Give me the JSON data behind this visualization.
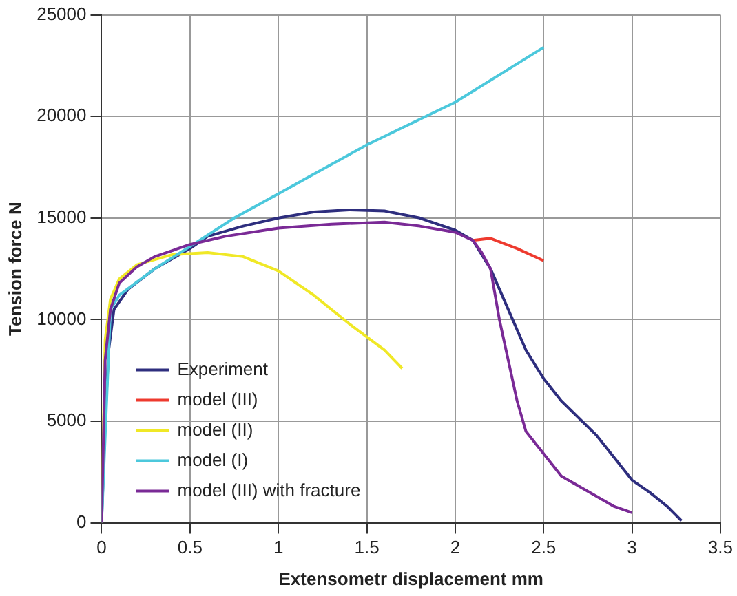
{
  "chart_data": {
    "type": "line",
    "xlabel": "Extensometr displacement mm",
    "ylabel": "Tension force N",
    "xlim": [
      0,
      3.5
    ],
    "xticks": [
      0,
      0.5,
      1,
      1.5,
      2,
      2.5,
      3,
      3.5
    ],
    "ylim": [
      0,
      25000
    ],
    "yticks": [
      0,
      5000,
      10000,
      15000,
      20000,
      25000
    ],
    "grid": true,
    "legend": "bottom left",
    "marker": "none",
    "line_style": "solid",
    "series": [
      {
        "name": "Experiment",
        "color": "#2e2e7e",
        "x": [
          0,
          0.02,
          0.04,
          0.07,
          0.15,
          0.3,
          0.5,
          0.6,
          0.8,
          1.0,
          1.2,
          1.4,
          1.6,
          1.8,
          2.0,
          2.1,
          2.2,
          2.3,
          2.4,
          2.5,
          2.6,
          2.8,
          3.0,
          3.1,
          3.2,
          3.28
        ],
        "values": [
          0,
          5000,
          8500,
          10500,
          11500,
          12500,
          13500,
          14100,
          14600,
          15000,
          15300,
          15400,
          15350,
          15000,
          14400,
          13900,
          12500,
          10500,
          8500,
          7100,
          6000,
          4300,
          2100,
          1500,
          800,
          100
        ]
      },
      {
        "name": "model (III)",
        "color": "#ee3a2e",
        "x": [
          2.1,
          2.2,
          2.35,
          2.5
        ],
        "values": [
          13900,
          14000,
          13500,
          12900
        ]
      },
      {
        "name": "model (II)",
        "color": "#f0e826",
        "x": [
          0,
          0.02,
          0.05,
          0.1,
          0.2,
          0.4,
          0.6,
          0.8,
          1.0,
          1.2,
          1.4,
          1.6,
          1.7
        ],
        "values": [
          0,
          9000,
          11000,
          12000,
          12700,
          13200,
          13300,
          13100,
          12400,
          11200,
          9800,
          8500,
          7600
        ]
      },
      {
        "name": "model (I)",
        "color": "#4cc8dc",
        "x": [
          0,
          0.05,
          0.1,
          0.3,
          0.5,
          0.75,
          1.0,
          1.5,
          2.0,
          2.5
        ],
        "values": [
          0,
          10500,
          11200,
          12500,
          13600,
          15000,
          16200,
          18600,
          20700,
          23400
        ]
      },
      {
        "name": "model (III) with fracture",
        "color": "#7a2a96",
        "x": [
          0,
          0.02,
          0.05,
          0.1,
          0.2,
          0.3,
          0.5,
          0.7,
          1.0,
          1.3,
          1.6,
          1.8,
          2.0,
          2.1,
          2.15,
          2.2,
          2.25,
          2.3,
          2.35,
          2.4,
          2.5,
          2.6,
          2.7,
          2.8,
          2.9,
          3.0
        ],
        "values": [
          0,
          8000,
          10500,
          11800,
          12600,
          13100,
          13700,
          14100,
          14500,
          14700,
          14800,
          14600,
          14300,
          13900,
          13300,
          12500,
          10000,
          8000,
          6000,
          4500,
          3400,
          2300,
          1800,
          1300,
          800,
          500
        ]
      }
    ]
  }
}
